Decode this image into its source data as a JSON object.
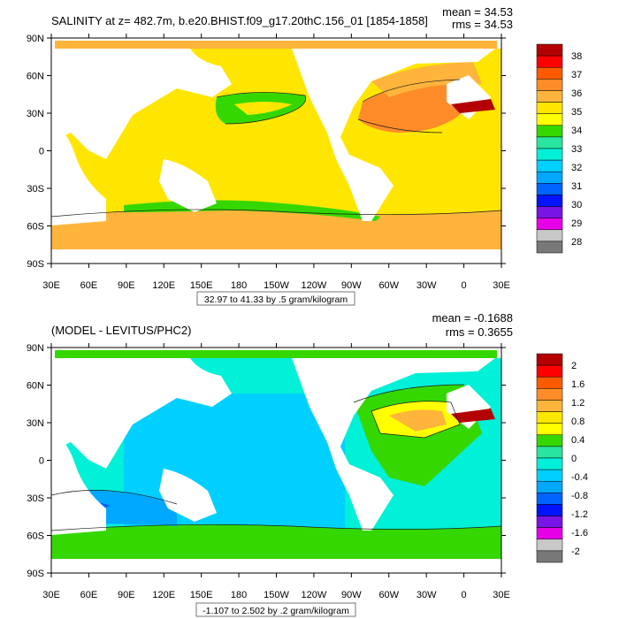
{
  "colors": {
    "land": "#ffffff",
    "frame": "#000000",
    "contour": "#1a1a1a"
  },
  "axes": {
    "lat_labels": [
      "90N",
      "60N",
      "30N",
      "0",
      "30S",
      "60S",
      "90S"
    ],
    "lon_labels": [
      "30E",
      "60E",
      "90E",
      "120E",
      "150E",
      "180",
      "150W",
      "120W",
      "90W",
      "60W",
      "30W",
      "0",
      "30E"
    ]
  },
  "panel1": {
    "title": "SALINITY at z= 482.7m, b.e20.BHIST.f09_g17.20thC.156_01 [1854-1858]",
    "mean_label": "mean = 34.53",
    "rms_label": "rms = 34.53",
    "range_label": "32.97 to 41.33 by .5 gram/kilogram",
    "colorbar": {
      "labels": [
        "38",
        "37",
        "36",
        "35",
        "34",
        "33",
        "32",
        "31",
        "30",
        "29",
        "28"
      ],
      "colors": [
        "#b40000",
        "#ff0000",
        "#ff5a00",
        "#ff8c28",
        "#ffb43c",
        "#ffe600",
        "#ffff00",
        "#34d800",
        "#28e6a0",
        "#00f0d8",
        "#00d0ff",
        "#00a8ff",
        "#0064ff",
        "#0014ff",
        "#7814e6",
        "#e600e6",
        "#c8c8c8",
        "#787878"
      ]
    }
  },
  "panel2": {
    "title": "(MODEL - LEVITUS/PHC2)",
    "mean_label": "mean = -0.1688",
    "rms_label": "rms = 0.3655",
    "range_label": "-1.107 to 2.502 by .2 gram/kilogram",
    "colorbar": {
      "labels": [
        "2",
        "1.6",
        "1.2",
        "0.8",
        "0.4",
        "0",
        "-0.4",
        "-0.8",
        "-1.2",
        "-1.6",
        "-2"
      ],
      "colors": [
        "#b40000",
        "#ff0000",
        "#ff5a00",
        "#ff8c28",
        "#ffb43c",
        "#ffe600",
        "#ffff00",
        "#34d800",
        "#28e6a0",
        "#00f0d8",
        "#00d0ff",
        "#00a8ff",
        "#0064ff",
        "#0014ff",
        "#7814e6",
        "#e600e6",
        "#c8c8c8",
        "#787878"
      ]
    }
  }
}
